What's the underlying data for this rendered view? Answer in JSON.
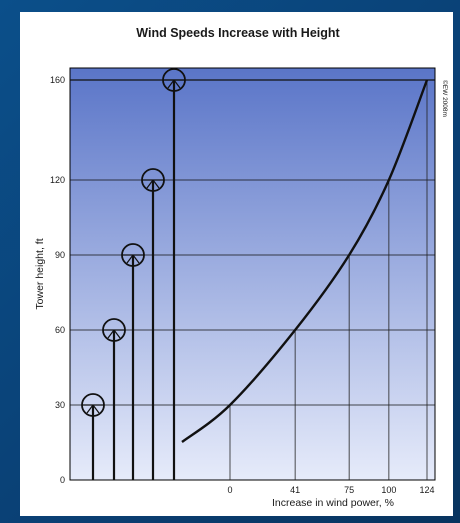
{
  "chart_data": {
    "type": "line",
    "title": "Wind Speeds Increase with Height",
    "xlabel": "Increase in wind power, %",
    "ylabel": "Tower height, ft",
    "credit": "©EW 2008m",
    "y_ticks": [
      0,
      30,
      60,
      90,
      120,
      160
    ],
    "x_ticks": [
      0,
      41,
      75,
      100,
      124
    ],
    "ylim": [
      0,
      160
    ],
    "xlim": [
      0,
      124
    ],
    "series": [
      {
        "x": [
          0,
          41,
          75,
          100,
          124
        ],
        "y": [
          30,
          60,
          90,
          120,
          160
        ]
      }
    ],
    "turbines": [
      {
        "height": 30
      },
      {
        "height": 60
      },
      {
        "height": 90
      },
      {
        "height": 120
      },
      {
        "height": 160
      }
    ],
    "grid": true,
    "colors": {
      "plot_top": "#5a75c8",
      "plot_bottom": "#e6ebfa",
      "line": "#111111"
    }
  }
}
